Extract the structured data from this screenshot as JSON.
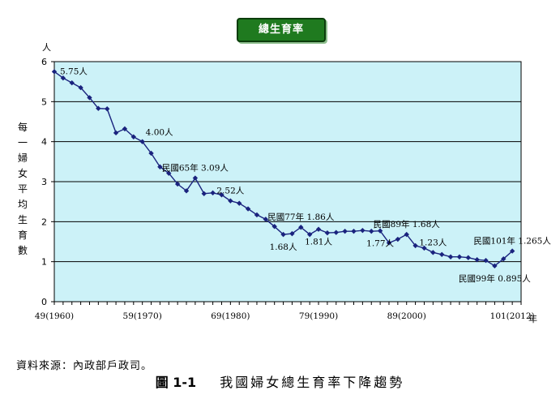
{
  "chart_data": {
    "type": "line",
    "title": "總生育率",
    "ylabel": "每一婦女平均生育數",
    "y_unit": "人",
    "x_unit": "年",
    "ylim": [
      0,
      6
    ],
    "y_ticks": [
      "0",
      "1",
      "2",
      "3",
      "4",
      "5",
      "6"
    ],
    "x_ticks": [
      {
        "x": 1960,
        "label": "49(1960)"
      },
      {
        "x": 1970,
        "label": "59(1970)"
      },
      {
        "x": 1980,
        "label": "69(1980)"
      },
      {
        "x": 1990,
        "label": "79(1990)"
      },
      {
        "x": 2000,
        "label": "89(2000)"
      },
      {
        "x": 2012,
        "label": "101(2012)"
      }
    ],
    "xlim": [
      1960,
      2013
    ],
    "grid": true,
    "colors": {
      "plot_bg": "#ccf2f8",
      "line": "#1a237e",
      "grid": "#000000"
    },
    "series": [
      {
        "x": [
          1960,
          1961,
          1962,
          1963,
          1964,
          1965,
          1966,
          1967,
          1968,
          1969,
          1970,
          1971,
          1972,
          1973,
          1974,
          1975,
          1976,
          1977,
          1978,
          1979,
          1980,
          1981,
          1982,
          1983,
          1984,
          1985,
          1986,
          1987,
          1988,
          1989,
          1990,
          1991,
          1992,
          1993,
          1994,
          1995,
          1996,
          1997,
          1998,
          1999,
          2000,
          2001,
          2002,
          2003,
          2004,
          2005,
          2006,
          2007,
          2008,
          2009,
          2010,
          2011,
          2012
        ],
        "y": [
          5.75,
          5.59,
          5.47,
          5.35,
          5.1,
          4.83,
          4.82,
          4.22,
          4.32,
          4.12,
          4.0,
          3.71,
          3.37,
          3.21,
          2.94,
          2.77,
          3.09,
          2.7,
          2.72,
          2.67,
          2.52,
          2.46,
          2.32,
          2.17,
          2.06,
          1.88,
          1.68,
          1.7,
          1.86,
          1.68,
          1.81,
          1.72,
          1.73,
          1.76,
          1.76,
          1.78,
          1.76,
          1.77,
          1.47,
          1.56,
          1.68,
          1.4,
          1.34,
          1.23,
          1.18,
          1.12,
          1.12,
          1.1,
          1.05,
          1.03,
          0.895,
          1.07,
          1.265
        ]
      }
    ],
    "annotations": [
      {
        "x": 1960,
        "y": 5.75,
        "text": "5.75人",
        "pos": "right"
      },
      {
        "x": 1970,
        "y": 4.0,
        "text": "4.00人",
        "pos": "above-right"
      },
      {
        "x": 1976,
        "y": 3.09,
        "text": "民國65年 3.09人",
        "pos": "above"
      },
      {
        "x": 1980,
        "y": 2.52,
        "text": "2.52人",
        "pos": "above"
      },
      {
        "x": 1988,
        "y": 1.86,
        "text": "民國77年 1.86人",
        "pos": "above"
      },
      {
        "x": 1986,
        "y": 1.68,
        "text": "1.68人",
        "pos": "below"
      },
      {
        "x": 1990,
        "y": 1.81,
        "text": "1.81人",
        "pos": "below"
      },
      {
        "x": 2000,
        "y": 1.68,
        "text": "民國89年 1.68人",
        "pos": "above"
      },
      {
        "x": 1997,
        "y": 1.77,
        "text": "1.77人",
        "pos": "below"
      },
      {
        "x": 2003,
        "y": 1.23,
        "text": "1.23人",
        "pos": "above"
      },
      {
        "x": 2012,
        "y": 1.265,
        "text": "民國101年 1.265人",
        "pos": "above"
      },
      {
        "x": 2010,
        "y": 0.895,
        "text": "民國99年 0.895人",
        "pos": "below"
      }
    ]
  },
  "footer": {
    "source": "資料來源：內政部戶政司。",
    "figure_number": "圖 1-1",
    "figure_title": "我國婦女總生育率下降趨勢"
  }
}
